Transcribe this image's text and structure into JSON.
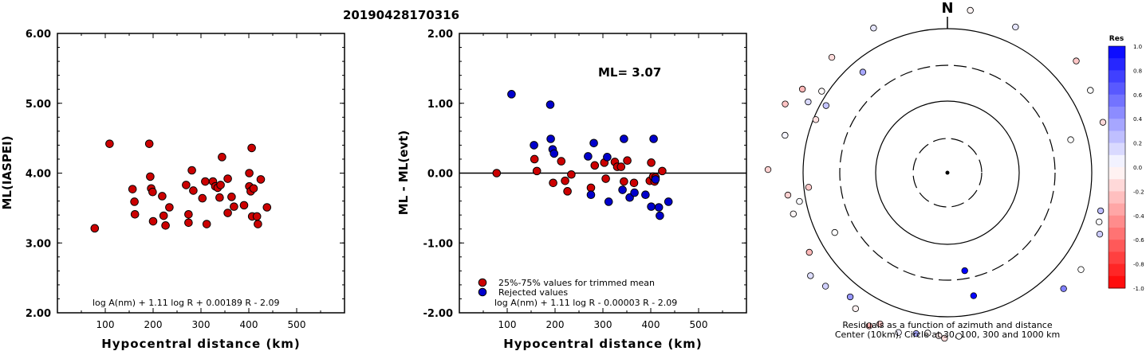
{
  "event_id": "20190428170316",
  "chart_data": [
    {
      "type": "scatter",
      "ylabel": "ML(IASPEI)",
      "xlabel": "Hypocentral distance (km)",
      "xlim": [
        0,
        600
      ],
      "ylim": [
        2.0,
        6.0
      ],
      "xticks": [
        "100",
        "200",
        "300",
        "400",
        "500"
      ],
      "yticks": [
        "2.00",
        "3.00",
        "4.00",
        "5.00",
        "6.00"
      ],
      "formula": "log A(nm) + 1.11 log R + 0.00189 R - 2.09",
      "series": [
        {
          "color": "#cc0000",
          "points": [
            [
              78,
              3.21
            ],
            [
              109,
              4.42
            ],
            [
              157,
              3.77
            ],
            [
              161,
              3.59
            ],
            [
              162,
              3.41
            ],
            [
              192,
              4.42
            ],
            [
              194,
              3.95
            ],
            [
              196,
              3.78
            ],
            [
              199,
              3.73
            ],
            [
              200,
              3.31
            ],
            [
              219,
              3.67
            ],
            [
              222,
              3.39
            ],
            [
              226,
              3.25
            ],
            [
              234,
              3.51
            ],
            [
              269,
              3.83
            ],
            [
              274,
              3.41
            ],
            [
              274,
              3.29
            ],
            [
              281,
              4.04
            ],
            [
              284,
              3.75
            ],
            [
              303,
              3.64
            ],
            [
              309,
              3.88
            ],
            [
              312,
              3.27
            ],
            [
              325,
              3.88
            ],
            [
              330,
              3.81
            ],
            [
              335,
              3.79
            ],
            [
              339,
              3.65
            ],
            [
              341,
              3.83
            ],
            [
              344,
              4.23
            ],
            [
              356,
              3.92
            ],
            [
              356,
              3.43
            ],
            [
              364,
              3.66
            ],
            [
              369,
              3.52
            ],
            [
              390,
              3.54
            ],
            [
              401,
              4.0
            ],
            [
              401,
              3.81
            ],
            [
              404,
              3.74
            ],
            [
              406,
              4.36
            ],
            [
              407,
              3.38
            ],
            [
              410,
              3.78
            ],
            [
              417,
              3.38
            ],
            [
              419,
              3.27
            ],
            [
              425,
              3.91
            ],
            [
              438,
              3.51
            ]
          ]
        }
      ]
    },
    {
      "type": "scatter",
      "ylabel": "ML - ML(evt)",
      "xlabel": "Hypocentral distance (km)",
      "xlim": [
        0,
        600
      ],
      "ylim": [
        -2.0,
        2.0
      ],
      "xticks": [
        "100",
        "200",
        "300",
        "400",
        "500"
      ],
      "yticks": [
        "-2.00",
        "-1.00",
        "0.00",
        "1.00",
        "2.00"
      ],
      "ml_label": "ML= 3.07",
      "formula": "log A(nm) + 1.11 log R - 0.00003 R - 2.09",
      "legend": [
        "25%-75% values for trimmed mean",
        "Rejected values"
      ],
      "series": [
        {
          "name": "25%-75% values for trimmed mean",
          "color": "#cc0000",
          "points": [
            [
              78,
              0.0
            ],
            [
              157,
              0.2
            ],
            [
              162,
              0.03
            ],
            [
              196,
              -0.14
            ],
            [
              213,
              0.17
            ],
            [
              221,
              -0.11
            ],
            [
              226,
              -0.26
            ],
            [
              234,
              -0.02
            ],
            [
              275,
              -0.21
            ],
            [
              283,
              0.11
            ],
            [
              303,
              0.15
            ],
            [
              306,
              -0.08
            ],
            [
              325,
              0.16
            ],
            [
              330,
              0.09
            ],
            [
              338,
              0.09
            ],
            [
              344,
              -0.12
            ],
            [
              351,
              0.18
            ],
            [
              365,
              -0.14
            ],
            [
              398,
              -0.11
            ],
            [
              401,
              0.15
            ],
            [
              405,
              -0.05
            ],
            [
              408,
              -0.12
            ],
            [
              410,
              -0.06
            ],
            [
              424,
              0.03
            ]
          ]
        },
        {
          "name": "Rejected values",
          "color": "#0000cc",
          "points": [
            [
              109,
              1.13
            ],
            [
              156,
              0.4
            ],
            [
              190,
              0.98
            ],
            [
              191,
              0.49
            ],
            [
              195,
              0.34
            ],
            [
              198,
              0.28
            ],
            [
              269,
              0.24
            ],
            [
              275,
              -0.31
            ],
            [
              281,
              0.43
            ],
            [
              309,
              0.23
            ],
            [
              312,
              -0.41
            ],
            [
              341,
              -0.24
            ],
            [
              344,
              0.49
            ],
            [
              356,
              -0.35
            ],
            [
              366,
              -0.28
            ],
            [
              389,
              -0.31
            ],
            [
              401,
              -0.48
            ],
            [
              406,
              0.49
            ],
            [
              410,
              -0.09
            ],
            [
              417,
              -0.49
            ],
            [
              419,
              -0.61
            ],
            [
              437,
              -0.41
            ]
          ]
        }
      ]
    },
    {
      "type": "scatter",
      "title": "N",
      "caption_line1": "Residuals as a function of azimuth and distance",
      "caption_line2": "Center (10km), Circle at 30, 100, 300 and 1000 km",
      "legend_title": "Res",
      "colorbar_ticks": [
        "1.0",
        "0.8",
        "0.6",
        "0.4",
        "0.2",
        "0.0",
        "-0.2",
        "-0.4",
        "-0.6",
        "-0.8",
        "-1.0"
      ],
      "points_azimuth_distance_residual": [
        [
          315,
          205,
          -0.14
        ],
        [
          333,
          204,
          0.1
        ],
        [
          8,
          206,
          -0.04
        ],
        [
          25,
          202,
          0.1
        ],
        [
          49,
          214,
          -0.22
        ],
        [
          60,
          207,
          0.0
        ],
        [
          72,
          205,
          -0.15
        ],
        [
          75,
          160,
          0.0
        ],
        [
          104,
          198,
          0.26
        ],
        [
          108,
          200,
          0.02
        ],
        [
          112,
          206,
          0.2
        ],
        [
          126,
          207,
          0.0
        ],
        [
          135,
          206,
          0.5
        ],
        [
          170,
          125,
          1.13
        ],
        [
          168,
          158,
          0.98
        ],
        [
          176,
          206,
          -0.01
        ],
        [
          181,
          208,
          -0.14
        ],
        [
          183,
          205,
          -0.08
        ],
        [
          187,
          203,
          -0.02
        ],
        [
          191,
          206,
          0.34
        ],
        [
          197,
          210,
          0.06
        ],
        [
          204,
          208,
          -0.22
        ],
        [
          207,
          216,
          -0.3
        ],
        [
          214,
          206,
          -0.06
        ],
        [
          218,
          198,
          0.41
        ],
        [
          227,
          209,
          0.18
        ],
        [
          233,
          215,
          0.13
        ],
        [
          240,
          200,
          -0.28
        ],
        [
          255,
          200,
          -0.03
        ],
        [
          259,
          189,
          0.02
        ],
        [
          264,
          175,
          -0.21
        ],
        [
          262,
          202,
          -0.18
        ],
        [
          271,
          225,
          -0.18
        ],
        [
          283,
          209,
          0.04
        ],
        [
          293,
          221,
          -0.23
        ],
        [
          300,
          210,
          -0.28
        ],
        [
          297,
          196,
          0.15
        ],
        [
          303,
          188,
          -0.02
        ],
        [
          320,
          165,
          0.34
        ],
        [
          242,
          160,
          0.0
        ],
        [
          299,
          174,
          0.23
        ],
        [
          292,
          178,
          -0.12
        ]
      ]
    }
  ]
}
